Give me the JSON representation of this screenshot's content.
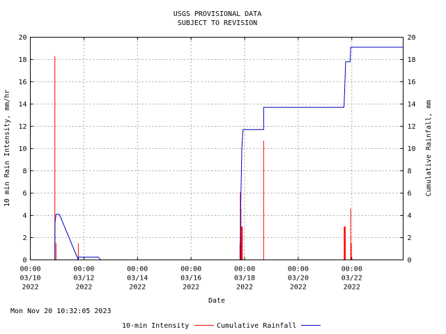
{
  "header": {
    "line1": "USGS PROVISIONAL DATA",
    "line2": "SUBJECT TO REVISION"
  },
  "footer": {
    "timestamp": "Mon Nov 20 10:32:05 2023"
  },
  "chart_data": {
    "type": "line",
    "xlabel": "Date",
    "ylabel_left": "10 min Rain Intensity, mm/hr",
    "ylabel_right": "Cumulative Rainfall, mm",
    "x_range": [
      "2022-03-10 00:00",
      "2022-03-23 22:00"
    ],
    "ylim_left": [
      0,
      20
    ],
    "ylim_right": [
      0,
      20
    ],
    "y_ticks": [
      0,
      2,
      4,
      6,
      8,
      10,
      12,
      14,
      16,
      18,
      20
    ],
    "x_ticks": [
      {
        "time": "00:00",
        "date": "03/10",
        "year": "2022",
        "at": "2022-03-10 00:00"
      },
      {
        "time": "00:00",
        "date": "03/12",
        "year": "2022",
        "at": "2022-03-12 00:00"
      },
      {
        "time": "00:00",
        "date": "03/14",
        "year": "2022",
        "at": "2022-03-14 00:00"
      },
      {
        "time": "00:00",
        "date": "03/16",
        "year": "2022",
        "at": "2022-03-16 00:00"
      },
      {
        "time": "00:00",
        "date": "03/18",
        "year": "2022",
        "at": "2022-03-18 00:00"
      },
      {
        "time": "00:00",
        "date": "03/20",
        "year": "2022",
        "at": "2022-03-20 00:00"
      },
      {
        "time": "00:00",
        "date": "03/22",
        "year": "2022",
        "at": "2022-03-22 00:00"
      }
    ],
    "grid": true,
    "legend_position": "bottom",
    "series": [
      {
        "name": "10-min Intensity",
        "color": "#ff0000",
        "style": "impulse",
        "points": [
          {
            "t": "2022-03-10 22:00",
            "v": 18.3
          },
          {
            "t": "2022-03-10 23:00",
            "v": 1.5
          },
          {
            "t": "2022-03-11 19:00",
            "v": 1.5
          },
          {
            "t": "2022-03-17 19:50",
            "v": 1.5
          },
          {
            "t": "2022-03-17 20:10",
            "v": 6.1
          },
          {
            "t": "2022-03-17 20:20",
            "v": 5.2
          },
          {
            "t": "2022-03-17 20:30",
            "v": 3.0
          },
          {
            "t": "2022-03-17 20:40",
            "v": 4.6
          },
          {
            "t": "2022-03-17 20:50",
            "v": 3.0
          },
          {
            "t": "2022-03-17 21:00",
            "v": 1.5
          },
          {
            "t": "2022-03-17 21:20",
            "v": 3.0
          },
          {
            "t": "2022-03-17 22:00",
            "v": 3.0
          },
          {
            "t": "2022-03-18 17:00",
            "v": 10.7
          },
          {
            "t": "2022-03-21 17:10",
            "v": 3.0
          },
          {
            "t": "2022-03-21 17:30",
            "v": 3.0
          },
          {
            "t": "2022-03-21 17:50",
            "v": 3.0
          },
          {
            "t": "2022-03-21 18:10",
            "v": 3.0
          },
          {
            "t": "2022-03-21 23:00",
            "v": 4.6
          },
          {
            "t": "2022-03-21 23:30",
            "v": 1.5
          }
        ]
      },
      {
        "name": "Cumulative Rainfall",
        "color": "#0000c0",
        "style": "line",
        "points": [
          {
            "t": "2022-03-10 22:00",
            "v": 0.0
          },
          {
            "t": "2022-03-10 22:05",
            "v": 3.3
          },
          {
            "t": "2022-03-10 23:00",
            "v": 4.1
          },
          {
            "t": "2022-03-11 02:00",
            "v": 4.1
          },
          {
            "t": "2022-03-11 19:00",
            "v": 0.0
          },
          {
            "t": "2022-03-11 19:10",
            "v": 0.25
          },
          {
            "t": "2022-03-12 13:00",
            "v": 0.25
          },
          {
            "t": "2022-03-12 15:00",
            "v": 0.0
          },
          {
            "t": "2022-03-17 20:00",
            "v": 0.0
          },
          {
            "t": "2022-03-17 20:30",
            "v": 5.0
          },
          {
            "t": "2022-03-17 21:30",
            "v": 10.0
          },
          {
            "t": "2022-03-17 22:30",
            "v": 11.7
          },
          {
            "t": "2022-03-18 17:00",
            "v": 11.7
          },
          {
            "t": "2022-03-18 17:05",
            "v": 13.7
          },
          {
            "t": "2022-03-21 17:00",
            "v": 13.7
          },
          {
            "t": "2022-03-21 17:30",
            "v": 15.0
          },
          {
            "t": "2022-03-21 18:30",
            "v": 17.8
          },
          {
            "t": "2022-03-21 22:30",
            "v": 17.8
          },
          {
            "t": "2022-03-21 23:00",
            "v": 19.1
          },
          {
            "t": "2022-03-23 22:00",
            "v": 19.1
          }
        ]
      }
    ]
  }
}
